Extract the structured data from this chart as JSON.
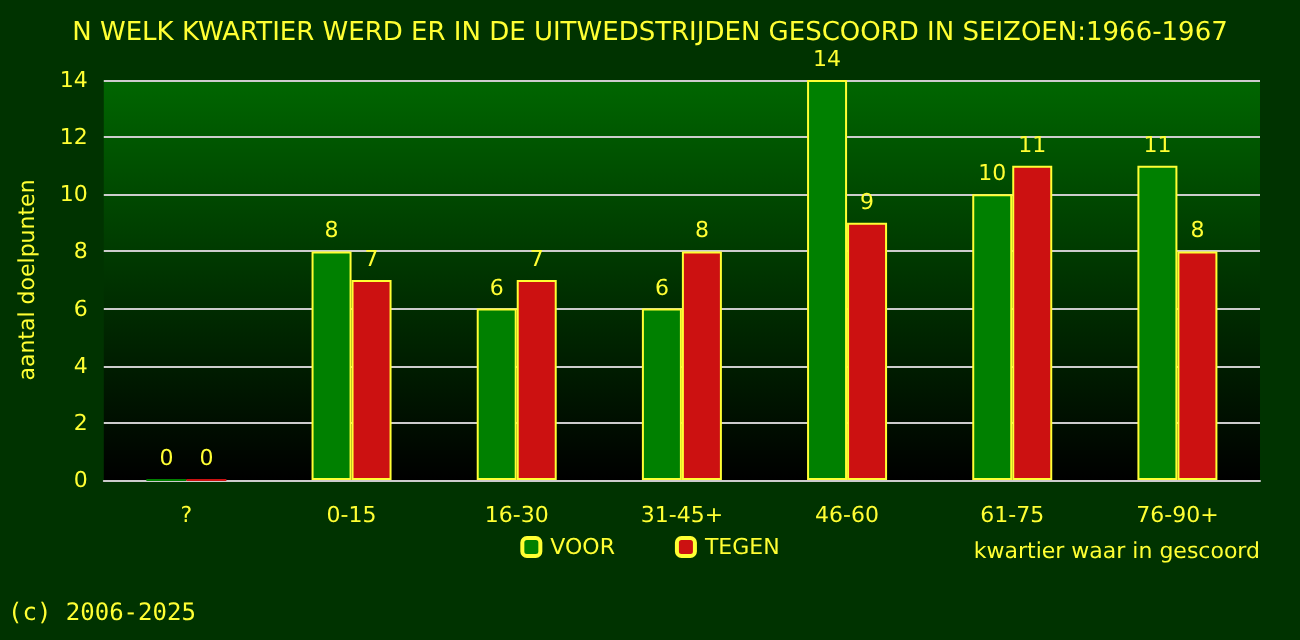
{
  "chart_data": {
    "type": "bar",
    "title": "N WELK KWARTIER WERD ER IN DE UITWEDSTRIJDEN GESCOORD IN SEIZOEN:1966-1967",
    "xlabel": "kwartier waar in gescoord",
    "ylabel": "aantal doelpunten",
    "annotations": [
      "(c) 2006-2025"
    ],
    "categories": [
      "?",
      "0-15",
      "16-30",
      "31-45+",
      "46-60",
      "61-75",
      "76-90+"
    ],
    "series": [
      {
        "name": "VOOR",
        "color": "#008000",
        "values": [
          0,
          8,
          6,
          6,
          14,
          10,
          11
        ]
      },
      {
        "name": "TEGEN",
        "color": "#cc1111",
        "values": [
          0,
          7,
          7,
          8,
          9,
          11,
          8
        ]
      }
    ],
    "ylim": [
      0,
      14
    ],
    "yticks": [
      0,
      2,
      4,
      6,
      8,
      10,
      12,
      14
    ],
    "grid": "y",
    "legend": "bottom",
    "data_labels": true
  }
}
